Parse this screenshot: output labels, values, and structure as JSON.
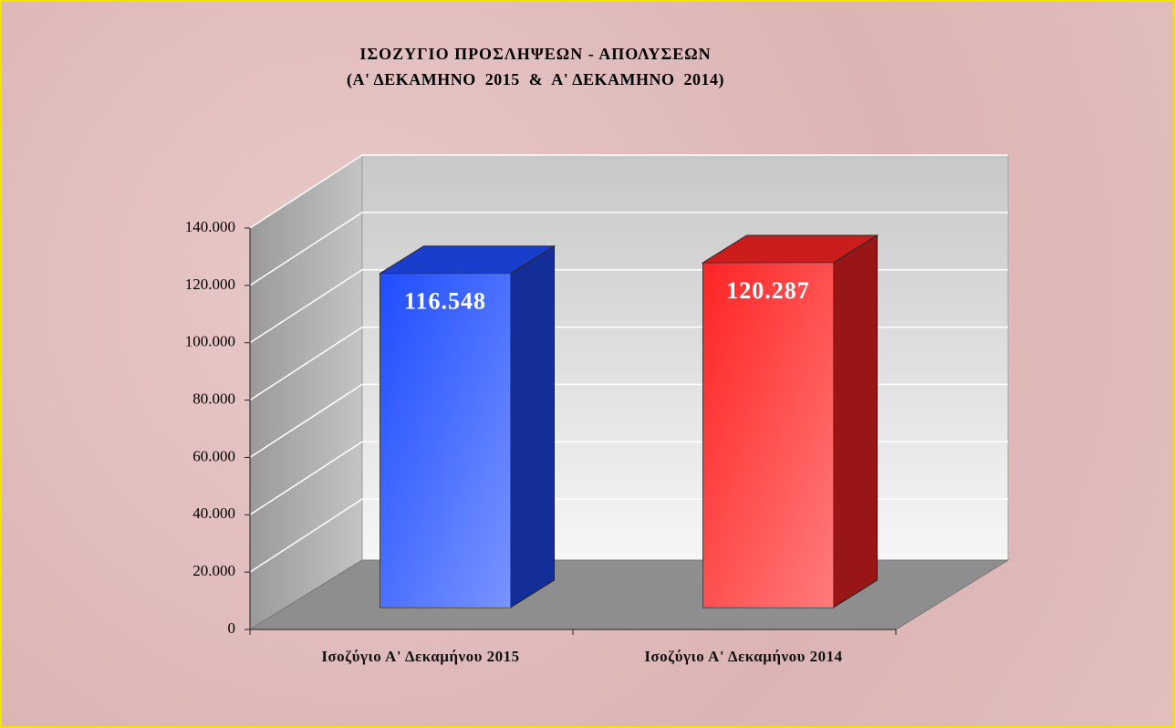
{
  "chart_data": {
    "type": "bar3d",
    "title": "ΙΣΟΖΥΓΙΟ ΠΡΟΣΛΗΨΕΩΝ - ΑΠΟΛΥΣΕΩΝ",
    "subtitle": "(Α' ΔΕΚΑΜΗΝΟ  2015  &  Α' ΔΕΚΑΜΗΝΟ  2014)",
    "categories": [
      "Ισοζύγιο Α' Δεκαμήνου 2015",
      "Ισοζύγιο Α' Δεκαμήνου 2014"
    ],
    "values": [
      116548,
      120287
    ],
    "value_labels": [
      "116.548",
      "120.287"
    ],
    "colors": [
      "#1f4dff",
      "#ff2424"
    ],
    "ylim": [
      0,
      140000
    ],
    "yticks": [
      0,
      {
        "value": 20000,
        "label": "20.000"
      },
      {
        "value": 40000,
        "label": "40.000"
      },
      {
        "value": 60000,
        "label": "60.000"
      },
      {
        "value": 80000,
        "label": "80.000"
      },
      {
        "value": 100000,
        "label": "100.000"
      },
      {
        "value": 120000,
        "label": "120.000"
      },
      {
        "value": 140000,
        "label": "140.000"
      }
    ],
    "grid": true
  }
}
